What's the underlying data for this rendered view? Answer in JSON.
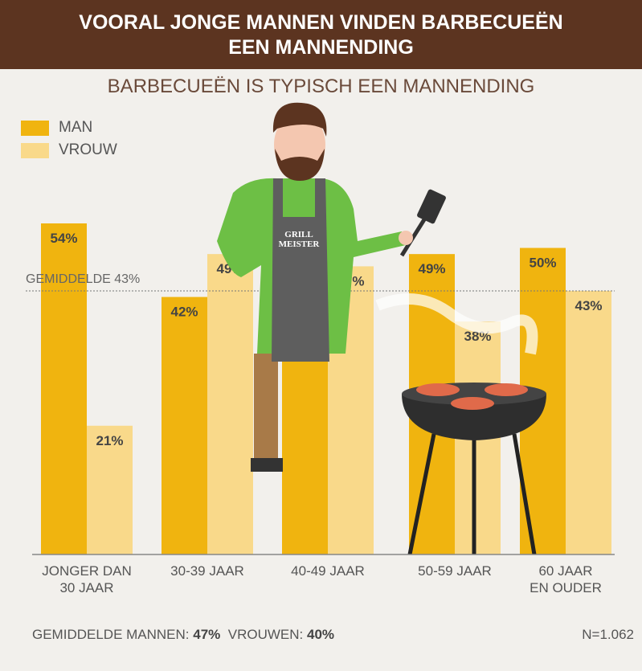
{
  "header": {
    "line1": "VOORAL JONGE MANNEN VINDEN BARBECUEËN",
    "line2": "EEN MANNENDING"
  },
  "chart_data": {
    "type": "bar",
    "title": "BARBECUEËN IS TYPISCH EEN MANNENDING",
    "categories": [
      "JONGER DAN 30 JAAR",
      "30-39 JAAR",
      "40-49 JAAR",
      "50-59 JAAR",
      "60 JAAR EN OUDER"
    ],
    "category_lines": [
      [
        "JONGER DAN",
        "30 JAAR"
      ],
      [
        "30-39 JAAR"
      ],
      [
        "40-49 JAAR"
      ],
      [
        "50-59 JAAR"
      ],
      [
        "60 JAAR",
        "EN OUDER"
      ]
    ],
    "series": [
      {
        "name": "MAN",
        "color": "#f0b40f",
        "values": [
          54,
          42,
          37,
          49,
          50
        ]
      },
      {
        "name": "VROUW",
        "color": "#f9d98a",
        "values": [
          21,
          49,
          47,
          38,
          43
        ]
      }
    ],
    "reference_line": {
      "label": "GEMIDDELDE 43%",
      "value": 43
    },
    "ylim": [
      0,
      54
    ],
    "legend": "top-left"
  },
  "illustration": {
    "apron_text": [
      "GRILL",
      "MEISTER"
    ]
  },
  "footer": {
    "label": "GEMIDDELDE MANNEN:",
    "men": "47%",
    "women_label": "VROUWEN:",
    "women": "40%",
    "n": "N=1.062"
  }
}
